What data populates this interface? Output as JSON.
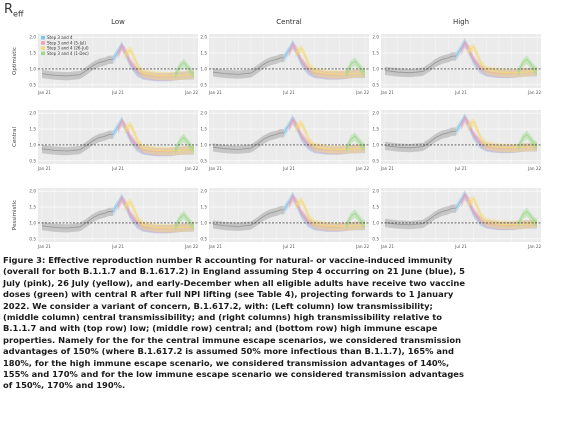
{
  "figure": {
    "title_main": "R",
    "title_sub": "eff",
    "caption": "Figure 3: Effective reproduction number R accounting for natural- or vaccine-induced immunity\n(overall for both B.1.1.7 and B.1.617.2) in England assuming Step 4 occurring on 21 June (blue), 5\nJuly (pink), 26 July (yellow), and early-December when all eligible adults have receive two vaccine\ndoses (green) with central R after full NPI lifting (see Table 4), projecting forwards to 1 January\n2022. We consider a variant of concern, B.1.617.2, with: (Left column) low transmissibility;\n(middle column) central transmissibility; and (right columns) high transmissibility relative to\nB.1.1.7 and with (top row) low; (middle row) central; and (bottom row) high immune escape\nproperties. Namely for the for the central immune escape scenarios, we considered transmission\nadvantages of 150% (where B.1.617.2 is assumed 50% more infectious than B.1.1.7), 165% and\n180%, for the high immune escape scenario, we considered transmission advantages of 140%,\n155% and 170% and for the low immune escape scenario we considered transmission advantages\nof 150%, 170% and 190%."
  },
  "colors": {
    "blue": "#7fc4ea",
    "pink": "#f2a0b6",
    "yellow": "#f2db7a",
    "green": "#9ed98c",
    "grey": "#9a9a9a",
    "panel_bg": "#ebebeb"
  },
  "chart_data": {
    "type": "line",
    "columns": [
      "Low",
      "Central",
      "High"
    ],
    "rows": [
      "Optimistic",
      "Central",
      "Pessimistic"
    ],
    "x_ticks": [
      "Jan 21",
      "Jul 21",
      "Jan 22"
    ],
    "y_ticks": [
      "2.0",
      "1.5",
      "1.0",
      "0.5"
    ],
    "ylim": [
      0.4,
      2.1
    ],
    "reference_line": 1.0,
    "legend": [
      {
        "label": "Step 3 and 4",
        "color": "#7fc4ea"
      },
      {
        "label": "Step 3 and 4 (5-Jul)",
        "color": "#f2a0b6"
      },
      {
        "label": "Step 3 and 4 (26-Jul)",
        "color": "#f2db7a"
      },
      {
        "label": "Step 3 and 4 (1-Dec)",
        "color": "#9ed98c"
      }
    ],
    "legend_placement": "top-left of first panel",
    "x_months": [
      0,
      1,
      2,
      3,
      4,
      5,
      6,
      7,
      8,
      9,
      10,
      11,
      12
    ],
    "series": [
      {
        "name": "Step 3 and 4",
        "color": "#7fc4ea",
        "x": [
          5.6,
          6.0,
          6.3,
          6.6,
          7.0,
          7.5,
          8.0,
          9.0,
          10.0,
          11.0,
          12.0
        ],
        "y": [
          1.3,
          1.55,
          1.75,
          1.5,
          1.15,
          0.9,
          0.8,
          0.75,
          0.75,
          0.8,
          0.8
        ]
      },
      {
        "name": "Step 3 and 4 (5-Jul)",
        "color": "#f2a0b6",
        "x": [
          6.0,
          6.3,
          6.6,
          7.0,
          7.5,
          8.0,
          9.0,
          10.0,
          11.0,
          12.0
        ],
        "y": [
          1.45,
          1.7,
          1.55,
          1.2,
          0.95,
          0.82,
          0.76,
          0.76,
          0.8,
          0.82
        ]
      },
      {
        "name": "Step 3 and 4 (26-Jul)",
        "color": "#f2db7a",
        "x": [
          6.5,
          7.0,
          7.3,
          7.6,
          8.0,
          9.0,
          10.0,
          11.0,
          12.0
        ],
        "y": [
          1.45,
          1.6,
          1.35,
          1.05,
          0.88,
          0.8,
          0.78,
          0.8,
          0.82
        ]
      },
      {
        "name": "Step 3 and 4 (1-Dec)",
        "color": "#9ed98c",
        "x": [
          10.5,
          10.9,
          11.2,
          11.5,
          11.8,
          12.0
        ],
        "y": [
          0.8,
          1.1,
          1.2,
          1.05,
          0.9,
          0.85
        ]
      },
      {
        "name": "Grey",
        "color": "#9a9a9a",
        "x": [
          0,
          1,
          2,
          3,
          3.5,
          4.0,
          4.5,
          5.0,
          5.3,
          5.6
        ],
        "y": [
          0.85,
          0.8,
          0.78,
          0.82,
          0.95,
          1.1,
          1.2,
          1.25,
          1.3,
          1.3
        ]
      }
    ]
  }
}
